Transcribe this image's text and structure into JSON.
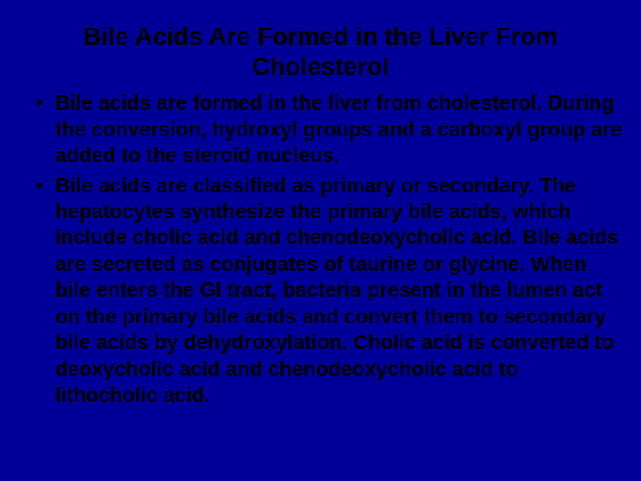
{
  "slide": {
    "background_color": "#000099",
    "text_color": "#000000",
    "title": "Bile Acids Are Formed in the Liver From Cholesterol",
    "title_fontsize": 28,
    "body_fontsize": 23,
    "bullets": [
      "Bile acids are formed in the liver from cholesterol. During the conversion, hydroxyl groups and a carboxyl group are added to the steroid nucleus.",
      "Bile acids are classified as primary or secondary. The hepatocytes synthesize the primary bile acids, which include cholic acid and chenodeoxycholic acid. Bile acids are secreted as conjugates of taurine or glycine. When bile enters the GI tract, bacteria present in the lumen act on the primary bile acids and convert them to secondary bile acids by dehydroxylation. Cholic acid is converted to deoxycholic acid and chenodeoxycholic acid to lithocholic acid."
    ]
  }
}
